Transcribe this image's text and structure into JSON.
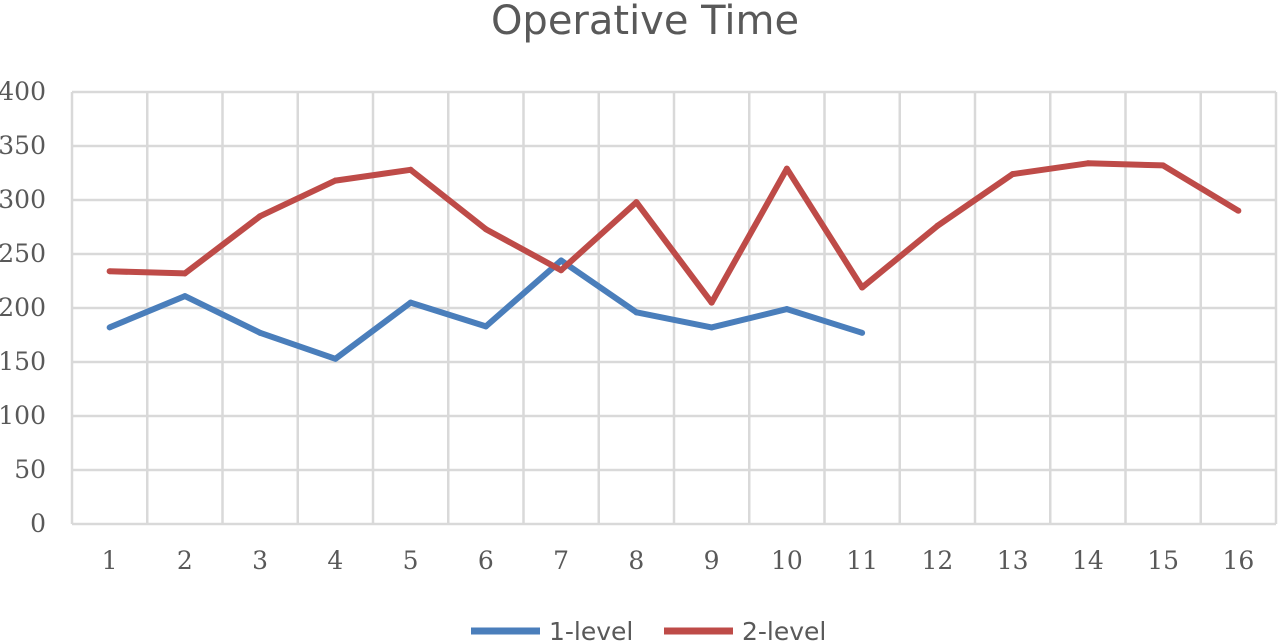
{
  "chart_data": {
    "type": "line",
    "title": "Operative Time",
    "xlabel": "",
    "ylabel": "",
    "categories": [
      "1",
      "2",
      "3",
      "4",
      "5",
      "6",
      "7",
      "8",
      "9",
      "10",
      "11",
      "12",
      "13",
      "14",
      "15",
      "16"
    ],
    "ylim": [
      0,
      400
    ],
    "yticks": [
      0,
      50,
      100,
      150,
      200,
      250,
      300,
      350,
      400
    ],
    "grid": true,
    "legend_position": "bottom",
    "series": [
      {
        "name": "1-level",
        "color": "#4a7ebb",
        "values": [
          182,
          211,
          177,
          153,
          205,
          183,
          244,
          196,
          182,
          199,
          177,
          null,
          null,
          null,
          null,
          null
        ]
      },
      {
        "name": "2-level",
        "color": "#be4b48",
        "values": [
          234,
          232,
          285,
          318,
          328,
          273,
          235,
          298,
          205,
          329,
          219,
          276,
          324,
          334,
          332,
          290
        ]
      }
    ]
  }
}
